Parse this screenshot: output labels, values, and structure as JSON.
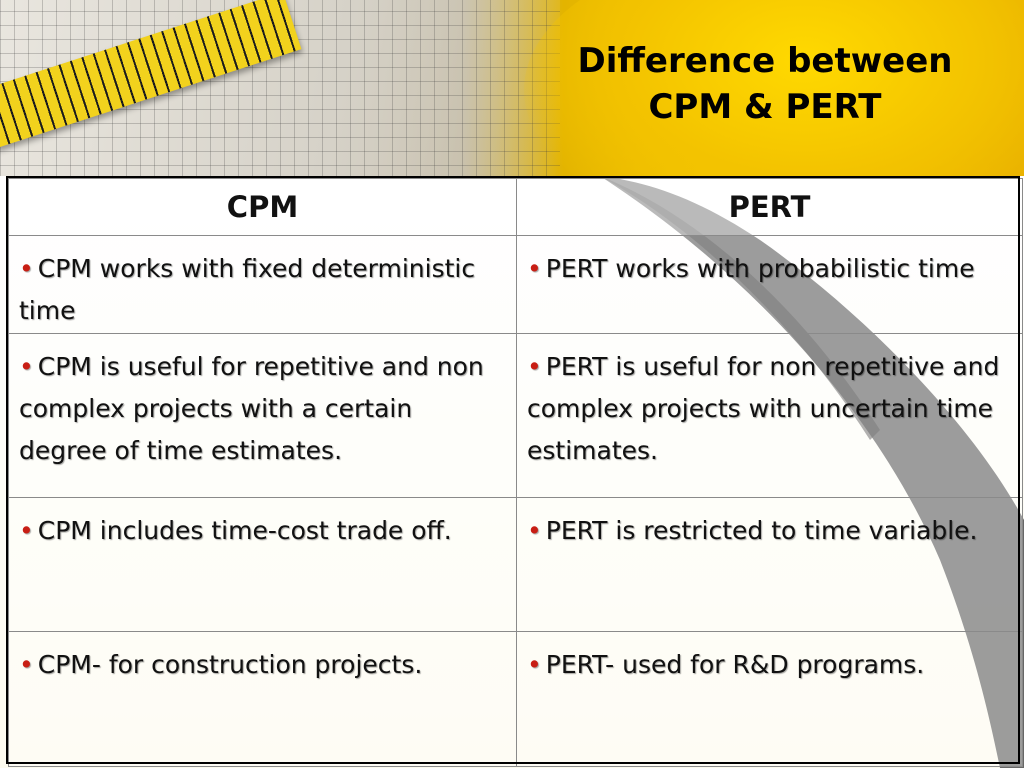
{
  "slide": {
    "title_line1": "Difference between",
    "title_line2": "CPM & PERT"
  },
  "table": {
    "headers": [
      "CPM",
      "PERT"
    ],
    "rows": [
      {
        "cpm": "CPM works with fixed deterministic time",
        "pert": "PERT works with probabilistic time"
      },
      {
        "cpm": "CPM is useful for repetitive and non complex projects with a certain degree of time estimates.",
        "pert": "PERT is useful for non repetitive and complex projects with uncertain time estimates."
      },
      {
        "cpm": "CPM includes time-cost trade off.",
        "pert": "PERT is restricted to time variable."
      },
      {
        "cpm": "CPM- for construction projects.",
        "pert": "PERT- used for R&D programs."
      }
    ],
    "bullet": "•"
  },
  "colors": {
    "bullet": "#c81e14",
    "accent_yellow": "#f4c400",
    "sweep_gray": "#5a5a5a"
  }
}
